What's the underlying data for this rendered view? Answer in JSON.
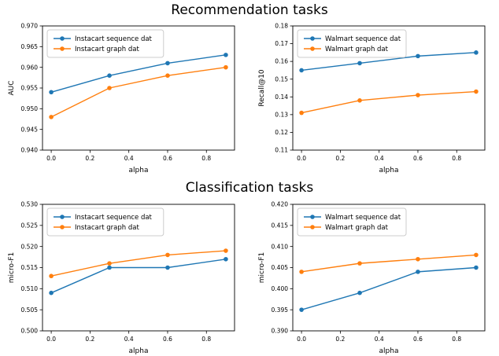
{
  "sections": [
    {
      "title": "Recommendation tasks"
    },
    {
      "title": "Classification tasks"
    }
  ],
  "colors": {
    "series_blue": "#1f77b4",
    "series_orange": "#ff7f0e",
    "axis": "#000000",
    "legend_border": "#cccccc",
    "background": "#ffffff"
  },
  "chart_data": [
    {
      "type": "line",
      "section": "Recommendation tasks",
      "xlabel": "alpha",
      "ylabel": "AUC",
      "x": [
        0.0,
        0.3,
        0.6,
        0.9
      ],
      "xticks": [
        0.0,
        0.2,
        0.4,
        0.6,
        0.8
      ],
      "xlim": [
        -0.045,
        0.945
      ],
      "ylim": [
        0.94,
        0.97
      ],
      "ytick_step": 0.005,
      "ydecimals": 3,
      "legend_position": "upper left",
      "grid": false,
      "series": [
        {
          "name": "Instacart sequence dat",
          "color": "#1f77b4",
          "values": [
            0.954,
            0.958,
            0.961,
            0.963
          ]
        },
        {
          "name": "Instacart graph dat",
          "color": "#ff7f0e",
          "values": [
            0.948,
            0.955,
            0.958,
            0.96
          ]
        }
      ]
    },
    {
      "type": "line",
      "section": "Recommendation tasks",
      "xlabel": "alpha",
      "ylabel": "Recall@10",
      "x": [
        0.0,
        0.3,
        0.6,
        0.9
      ],
      "xticks": [
        0.0,
        0.2,
        0.4,
        0.6,
        0.8
      ],
      "xlim": [
        -0.045,
        0.945
      ],
      "ylim": [
        0.11,
        0.18
      ],
      "ytick_step": 0.01,
      "ydecimals": 2,
      "legend_position": "upper left",
      "grid": false,
      "series": [
        {
          "name": "Walmart sequence dat",
          "color": "#1f77b4",
          "values": [
            0.155,
            0.159,
            0.163,
            0.165
          ]
        },
        {
          "name": "Walmart graph dat",
          "color": "#ff7f0e",
          "values": [
            0.131,
            0.138,
            0.141,
            0.143
          ]
        }
      ]
    },
    {
      "type": "line",
      "section": "Classification tasks",
      "xlabel": "alpha",
      "ylabel": "micro-F1",
      "x": [
        0.0,
        0.3,
        0.6,
        0.9
      ],
      "xticks": [
        0.0,
        0.2,
        0.4,
        0.6,
        0.8
      ],
      "xlim": [
        -0.045,
        0.945
      ],
      "ylim": [
        0.5,
        0.53
      ],
      "ytick_step": 0.005,
      "ydecimals": 3,
      "legend_position": "upper left",
      "grid": false,
      "series": [
        {
          "name": "Instacart sequence dat",
          "color": "#1f77b4",
          "values": [
            0.509,
            0.515,
            0.515,
            0.517
          ]
        },
        {
          "name": "Instacart graph dat",
          "color": "#ff7f0e",
          "values": [
            0.513,
            0.516,
            0.518,
            0.519
          ]
        }
      ]
    },
    {
      "type": "line",
      "section": "Classification tasks",
      "xlabel": "alpha",
      "ylabel": "micro-F1",
      "x": [
        0.0,
        0.3,
        0.6,
        0.9
      ],
      "xticks": [
        0.0,
        0.2,
        0.4,
        0.6,
        0.8
      ],
      "xlim": [
        -0.045,
        0.945
      ],
      "ylim": [
        0.39,
        0.42
      ],
      "ytick_step": 0.005,
      "ydecimals": 3,
      "legend_position": "upper left",
      "grid": false,
      "series": [
        {
          "name": "Walmart sequence dat",
          "color": "#1f77b4",
          "values": [
            0.395,
            0.399,
            0.404,
            0.405
          ]
        },
        {
          "name": "Walmart graph dat",
          "color": "#ff7f0e",
          "values": [
            0.404,
            0.406,
            0.407,
            0.408
          ]
        }
      ]
    }
  ]
}
